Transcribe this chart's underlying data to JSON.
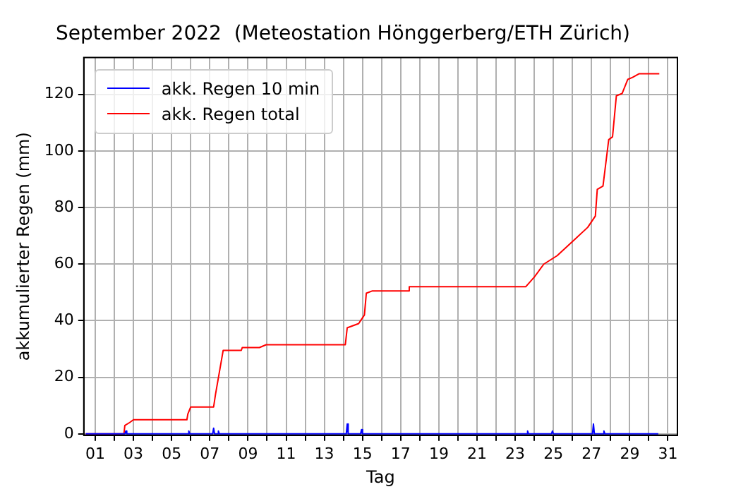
{
  "chart_data": {
    "type": "line",
    "title": "September 2022  (Meteostation Hönggerberg/ETH Zürich)",
    "xlabel": "Tag",
    "ylabel": "akkumulierter Regen (mm)",
    "xlim": [
      0.4,
      31.5
    ],
    "ylim": [
      -0.5,
      133
    ],
    "xticks": [
      {
        "value": 1,
        "label": "01"
      },
      {
        "value": 2,
        "label": null
      },
      {
        "value": 3,
        "label": "03"
      },
      {
        "value": 4,
        "label": null
      },
      {
        "value": 5,
        "label": "05"
      },
      {
        "value": 6,
        "label": null
      },
      {
        "value": 7,
        "label": "07"
      },
      {
        "value": 8,
        "label": null
      },
      {
        "value": 9,
        "label": "09"
      },
      {
        "value": 10,
        "label": null
      },
      {
        "value": 11,
        "label": "11"
      },
      {
        "value": 12,
        "label": null
      },
      {
        "value": 13,
        "label": "13"
      },
      {
        "value": 14,
        "label": null
      },
      {
        "value": 15,
        "label": "15"
      },
      {
        "value": 16,
        "label": null
      },
      {
        "value": 17,
        "label": "17"
      },
      {
        "value": 18,
        "label": null
      },
      {
        "value": 19,
        "label": "19"
      },
      {
        "value": 20,
        "label": null
      },
      {
        "value": 21,
        "label": "21"
      },
      {
        "value": 22,
        "label": null
      },
      {
        "value": 23,
        "label": "23"
      },
      {
        "value": 24,
        "label": null
      },
      {
        "value": 25,
        "label": "25"
      },
      {
        "value": 26,
        "label": null
      },
      {
        "value": 27,
        "label": "27"
      },
      {
        "value": 28,
        "label": null
      },
      {
        "value": 29,
        "label": "29"
      },
      {
        "value": 30,
        "label": null
      },
      {
        "value": 31,
        "label": "31"
      }
    ],
    "yticks": [
      0,
      20,
      40,
      60,
      80,
      100,
      120
    ],
    "grid": true,
    "legend": "top left",
    "series": [
      {
        "name": "akk. Regen 10 min",
        "color": "#0000ff",
        "x": [
          0.5,
          2.55,
          2.6,
          2.65,
          5.85,
          5.9,
          5.95,
          7.15,
          7.2,
          7.25,
          7.4,
          7.45,
          7.5,
          14.15,
          14.2,
          14.25,
          14.9,
          14.95,
          15.0,
          23.6,
          23.65,
          23.7,
          24.9,
          24.95,
          25.0,
          27.05,
          27.1,
          27.15,
          27.6,
          27.65,
          27.7,
          30.5
        ],
        "values": [
          0,
          0,
          1,
          0,
          0,
          1,
          0,
          0,
          2,
          0,
          0,
          1,
          0,
          0,
          3.5,
          0,
          0,
          1.5,
          0,
          0,
          1,
          0,
          0,
          1,
          0,
          0,
          3.5,
          0,
          0,
          1,
          0,
          0
        ]
      },
      {
        "name": "akk. Regen total",
        "color": "#ff0000",
        "x": [
          0.5,
          2.5,
          2.55,
          2.8,
          3.0,
          5.8,
          5.85,
          6.0,
          7.2,
          7.3,
          7.7,
          8.65,
          8.7,
          9.6,
          9.95,
          14.1,
          14.2,
          14.8,
          15.1,
          15.2,
          15.5,
          17.4,
          17.45,
          23.55,
          24.0,
          24.5,
          25.2,
          26.0,
          26.8,
          27.2,
          27.3,
          27.6,
          27.9,
          28.1,
          28.3,
          28.6,
          28.9,
          29.15,
          29.5,
          30.55
        ],
        "values": [
          0,
          0,
          3,
          4,
          5,
          5,
          7,
          9.5,
          9.5,
          14,
          29.5,
          29.5,
          30.5,
          30.5,
          31.5,
          31.5,
          37.5,
          39,
          42,
          49.7,
          50.5,
          50.5,
          52,
          52,
          55.4,
          60,
          63,
          68,
          73,
          77,
          86.4,
          87.6,
          104,
          105,
          119.5,
          120.3,
          125.3,
          126,
          127.3,
          127.3
        ]
      }
    ]
  }
}
